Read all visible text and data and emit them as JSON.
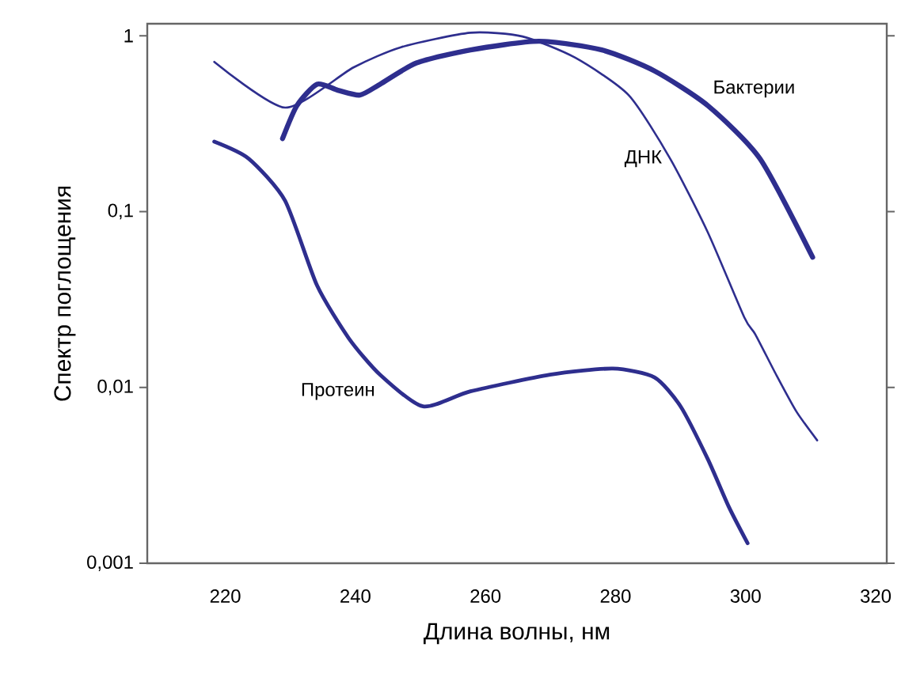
{
  "chart_data": {
    "type": "line",
    "xlabel": "Длина волны, нм",
    "ylabel": "Спектр поглощения",
    "log": "y",
    "grid": false,
    "legend": false,
    "marker": "none",
    "line_style": "solid",
    "xlim": [
      208,
      321.7
    ],
    "xticks": [
      220,
      240,
      260,
      280,
      300,
      320
    ],
    "ylim": [
      0.001,
      1.17
    ],
    "yticks": [
      {
        "value": 0.001,
        "label": "0,001"
      },
      {
        "value": 0.01,
        "label": "0,01"
      },
      {
        "value": 0.1,
        "label": "0,1"
      },
      {
        "value": 1,
        "label": "1"
      }
    ],
    "series": [
      {
        "name": "Бактерии",
        "color": "#2e2e8e",
        "x": [
          228.8,
          231,
          234.1,
          237.3,
          240.7,
          243.8,
          249.4,
          257.7,
          268.2,
          277.9,
          286,
          294.2,
          302.2,
          310.3
        ],
        "values": [
          0.26,
          0.4,
          0.53,
          0.49,
          0.46,
          0.53,
          0.7,
          0.83,
          0.93,
          0.83,
          0.63,
          0.4,
          0.2,
          0.055
        ]
      },
      {
        "name": "ДНК",
        "color": "#2e2e8e",
        "x": [
          218.3,
          229.2,
          239.7,
          247,
          257.7,
          265.7,
          273.8,
          282,
          288.4,
          294.2,
          299.8,
          301.5,
          304.7,
          307.8,
          311
        ],
        "values": [
          0.71,
          0.39,
          0.66,
          0.86,
          1.04,
          0.99,
          0.75,
          0.46,
          0.2,
          0.076,
          0.025,
          0.02,
          0.0118,
          0.0073,
          0.005
        ]
      },
      {
        "name": "Протеин",
        "color": "#2e2e8e",
        "x": [
          218.3,
          223.6,
          229.2,
          234.1,
          239,
          243.8,
          250.4,
          257.7,
          269.9,
          279.6,
          286,
          290,
          294.2,
          297.4,
          300.3
        ],
        "values": [
          0.25,
          0.2,
          0.115,
          0.038,
          0.019,
          0.0118,
          0.0078,
          0.0095,
          0.0118,
          0.0128,
          0.0114,
          0.0078,
          0.0039,
          0.0021,
          0.0013
        ]
      }
    ]
  }
}
